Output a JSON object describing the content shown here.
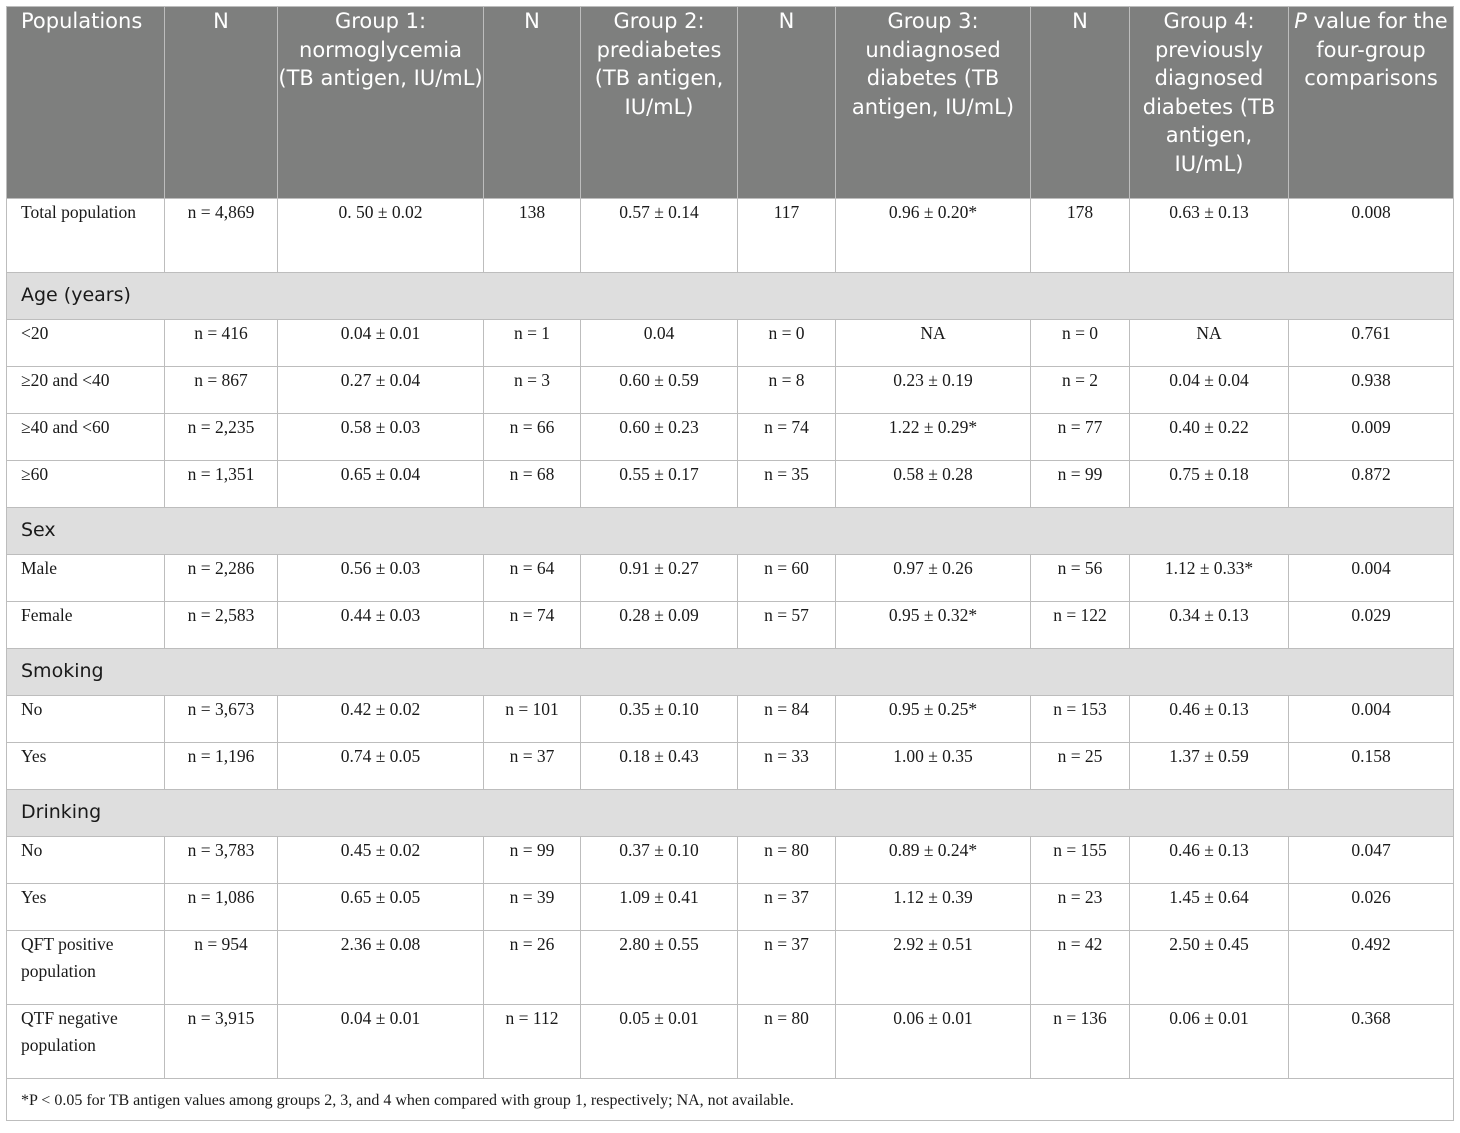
{
  "table": {
    "headers": [
      {
        "text": "Populations"
      },
      {
        "text": "N"
      },
      {
        "text": "Group 1: normoglycemia (TB antigen, IU/mL)"
      },
      {
        "text": "N"
      },
      {
        "text": "Group 2: prediabetes (TB antigen, IU/mL)"
      },
      {
        "text": "N"
      },
      {
        "text": "Group 3: undiagnosed diabetes (TB antigen, IU/mL)"
      },
      {
        "text": "N"
      },
      {
        "text": "Group 4: previously diagnosed diabetes (TB antigen, IU/mL)"
      },
      {
        "p_italic": "P",
        "rest": " value for the four-group comparisons"
      }
    ],
    "rows": [
      {
        "kind": "data",
        "cells": [
          "Total population",
          "n = 4,869",
          "0. 50 ± 0.02",
          "138",
          "0.57 ± 0.14",
          "117",
          "0.96 ± 0.20*",
          "178",
          "0.63 ± 0.13",
          "0.008"
        ]
      },
      {
        "kind": "section",
        "label": "Age (years)"
      },
      {
        "kind": "data",
        "cells": [
          "<20",
          "n = 416",
          "0.04 ± 0.01",
          "n = 1",
          "0.04",
          "n = 0",
          "NA",
          "n = 0",
          "NA",
          "0.761"
        ]
      },
      {
        "kind": "data",
        "cells": [
          "≥20 and <40",
          "n = 867",
          "0.27 ± 0.04",
          "n = 3",
          "0.60 ± 0.59",
          "n = 8",
          "0.23 ± 0.19",
          "n = 2",
          "0.04 ± 0.04",
          "0.938"
        ]
      },
      {
        "kind": "data",
        "cells": [
          "≥40 and <60",
          "n = 2,235",
          "0.58 ± 0.03",
          "n = 66",
          "0.60 ± 0.23",
          "n = 74",
          "1.22 ± 0.29*",
          "n = 77",
          "0.40 ± 0.22",
          "0.009"
        ]
      },
      {
        "kind": "data",
        "cells": [
          "≥60",
          "n = 1,351",
          "0.65 ± 0.04",
          "n = 68",
          "0.55 ± 0.17",
          "n = 35",
          "0.58 ± 0.28",
          "n = 99",
          "0.75 ± 0.18",
          "0.872"
        ]
      },
      {
        "kind": "section",
        "label": "Sex"
      },
      {
        "kind": "data",
        "cells": [
          "Male",
          "n = 2,286",
          "0.56 ± 0.03",
          "n = 64",
          "0.91 ± 0.27",
          "n = 60",
          "0.97 ± 0.26",
          "n = 56",
          "1.12 ± 0.33*",
          "0.004"
        ]
      },
      {
        "kind": "data",
        "cells": [
          "Female",
          "n = 2,583",
          "0.44 ± 0.03",
          "n = 74",
          "0.28 ± 0.09",
          "n = 57",
          "0.95 ± 0.32*",
          "n = 122",
          "0.34 ± 0.13",
          "0.029"
        ]
      },
      {
        "kind": "section",
        "label": "Smoking"
      },
      {
        "kind": "data",
        "cells": [
          "No",
          "n = 3,673",
          "0.42 ± 0.02",
          "n = 101",
          "0.35 ± 0.10",
          "n = 84",
          "0.95 ± 0.25*",
          "n = 153",
          "0.46 ± 0.13",
          "0.004"
        ]
      },
      {
        "kind": "data",
        "cells": [
          "Yes",
          "n = 1,196",
          "0.74 ± 0.05",
          "n = 37",
          "0.18 ± 0.43",
          "n = 33",
          "1.00 ± 0.35",
          "n = 25",
          "1.37 ± 0.59",
          "0.158"
        ]
      },
      {
        "kind": "section",
        "label": "Drinking"
      },
      {
        "kind": "data",
        "cells": [
          "No",
          "n = 3,783",
          "0.45 ± 0.02",
          "n = 99",
          "0.37 ± 0.10",
          "n = 80",
          "0.89 ± 0.24*",
          "n = 155",
          "0.46 ± 0.13",
          "0.047"
        ]
      },
      {
        "kind": "data",
        "cells": [
          "Yes",
          "n = 1,086",
          "0.65 ± 0.05",
          "n = 39",
          "1.09 ± 0.41",
          "n = 37",
          "1.12 ± 0.39",
          "n = 23",
          "1.45 ± 0.64",
          "0.026"
        ]
      },
      {
        "kind": "data",
        "cells": [
          "QFT positive population",
          "n = 954",
          "2.36 ± 0.08",
          "n = 26",
          "2.80 ± 0.55",
          "n = 37",
          "2.92 ± 0.51",
          "n = 42",
          "2.50 ± 0.45",
          "0.492"
        ]
      },
      {
        "kind": "data",
        "cells": [
          "QTF negative population",
          "n = 3,915",
          "0.04 ± 0.01",
          "n = 112",
          "0.05 ± 0.01",
          "n = 80",
          "0.06 ± 0.01",
          "n = 136",
          "0.06 ± 0.01",
          "0.368"
        ]
      }
    ],
    "footnote": "*P < 0.05 for TB antigen values among groups 2, 3, and 4 when compared with group 1, respectively; NA, not available."
  }
}
